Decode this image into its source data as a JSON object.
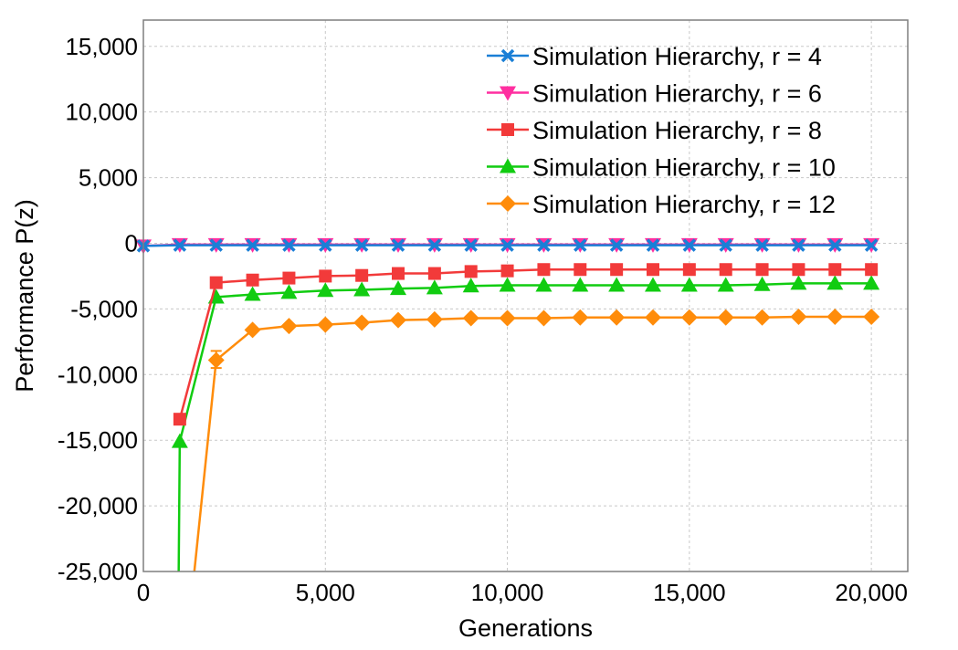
{
  "chart_data": {
    "type": "line",
    "xlabel": "Generations",
    "ylabel": "Performance P(z)",
    "xlim": [
      0,
      21000
    ],
    "ylim": [
      -25000,
      17000
    ],
    "xticks": [
      0,
      5000,
      10000,
      15000,
      20000
    ],
    "xtick_labels": [
      "0",
      "5,000",
      "10,000",
      "15,000",
      "20,000"
    ],
    "yticks": [
      -25000,
      -20000,
      -15000,
      -10000,
      -5000,
      0,
      5000,
      10000,
      15000
    ],
    "ytick_labels": [
      "-25,000",
      "-20,000",
      "-15,000",
      "-10,000",
      "-5,000",
      "0",
      "5,000",
      "10,000",
      "15,000"
    ],
    "grid": true,
    "legend_position": "top-right",
    "x": [
      0,
      1000,
      2000,
      3000,
      4000,
      5000,
      6000,
      7000,
      8000,
      9000,
      10000,
      11000,
      12000,
      13000,
      14000,
      15000,
      16000,
      17000,
      18000,
      19000,
      20000
    ],
    "series": [
      {
        "name": "Simulation Hierarchy, r = 4",
        "color": "#1a7fd6",
        "marker": "x",
        "values": [
          -200,
          -150,
          -150,
          -150,
          -150,
          -150,
          -150,
          -150,
          -150,
          -150,
          -150,
          -150,
          -150,
          -150,
          -150,
          -150,
          -150,
          -150,
          -150,
          -150,
          -150
        ]
      },
      {
        "name": "Simulation Hierarchy, r = 6",
        "color": "#ff2fa0",
        "marker": "triangle-down",
        "values": [
          -200,
          -100,
          -100,
          -100,
          -100,
          -100,
          -100,
          -100,
          -100,
          -100,
          -100,
          -100,
          -100,
          -100,
          -100,
          -100,
          -100,
          -100,
          -100,
          -100,
          -100
        ]
      },
      {
        "name": "Simulation Hierarchy, r = 8",
        "color": "#f23a3a",
        "marker": "square",
        "x": [
          1000,
          2000,
          3000,
          4000,
          5000,
          6000,
          7000,
          8000,
          9000,
          10000,
          11000,
          12000,
          13000,
          14000,
          15000,
          16000,
          17000,
          18000,
          19000,
          20000
        ],
        "values": [
          -13400,
          -3000,
          -2800,
          -2650,
          -2500,
          -2450,
          -2300,
          -2300,
          -2150,
          -2100,
          -2000,
          -2000,
          -2000,
          -2000,
          -2000,
          -2000,
          -2000,
          -2000,
          -2000,
          -2000
        ]
      },
      {
        "name": "Simulation Hierarchy, r = 10",
        "color": "#11cc11",
        "marker": "triangle-up",
        "x": [
          970,
          1000,
          2000,
          3000,
          4000,
          5000,
          6000,
          7000,
          8000,
          9000,
          10000,
          11000,
          12000,
          13000,
          14000,
          15000,
          16000,
          17000,
          18000,
          19000,
          20000
        ],
        "values": [
          -25000,
          -15100,
          -4100,
          -3900,
          -3750,
          -3600,
          -3550,
          -3450,
          -3400,
          -3250,
          -3200,
          -3200,
          -3200,
          -3200,
          -3200,
          -3200,
          -3200,
          -3150,
          -3050,
          -3050,
          -3050
        ],
        "markers_from_index": 1
      },
      {
        "name": "Simulation Hierarchy, r = 12",
        "color": "#ff8c0a",
        "marker": "diamond",
        "x": [
          1400,
          2000,
          3000,
          4000,
          5000,
          6000,
          7000,
          8000,
          9000,
          10000,
          11000,
          12000,
          13000,
          14000,
          15000,
          16000,
          17000,
          18000,
          19000,
          20000
        ],
        "values": [
          -25000,
          -8900,
          -6600,
          -6300,
          -6200,
          -6050,
          -5850,
          -5800,
          -5700,
          -5700,
          -5700,
          -5650,
          -5650,
          -5650,
          -5650,
          -5650,
          -5650,
          -5600,
          -5600,
          -5600
        ],
        "markers_from_index": 1,
        "error_bars": [
          {
            "x": 2000,
            "low": -9500,
            "high": -8200
          }
        ]
      }
    ]
  }
}
